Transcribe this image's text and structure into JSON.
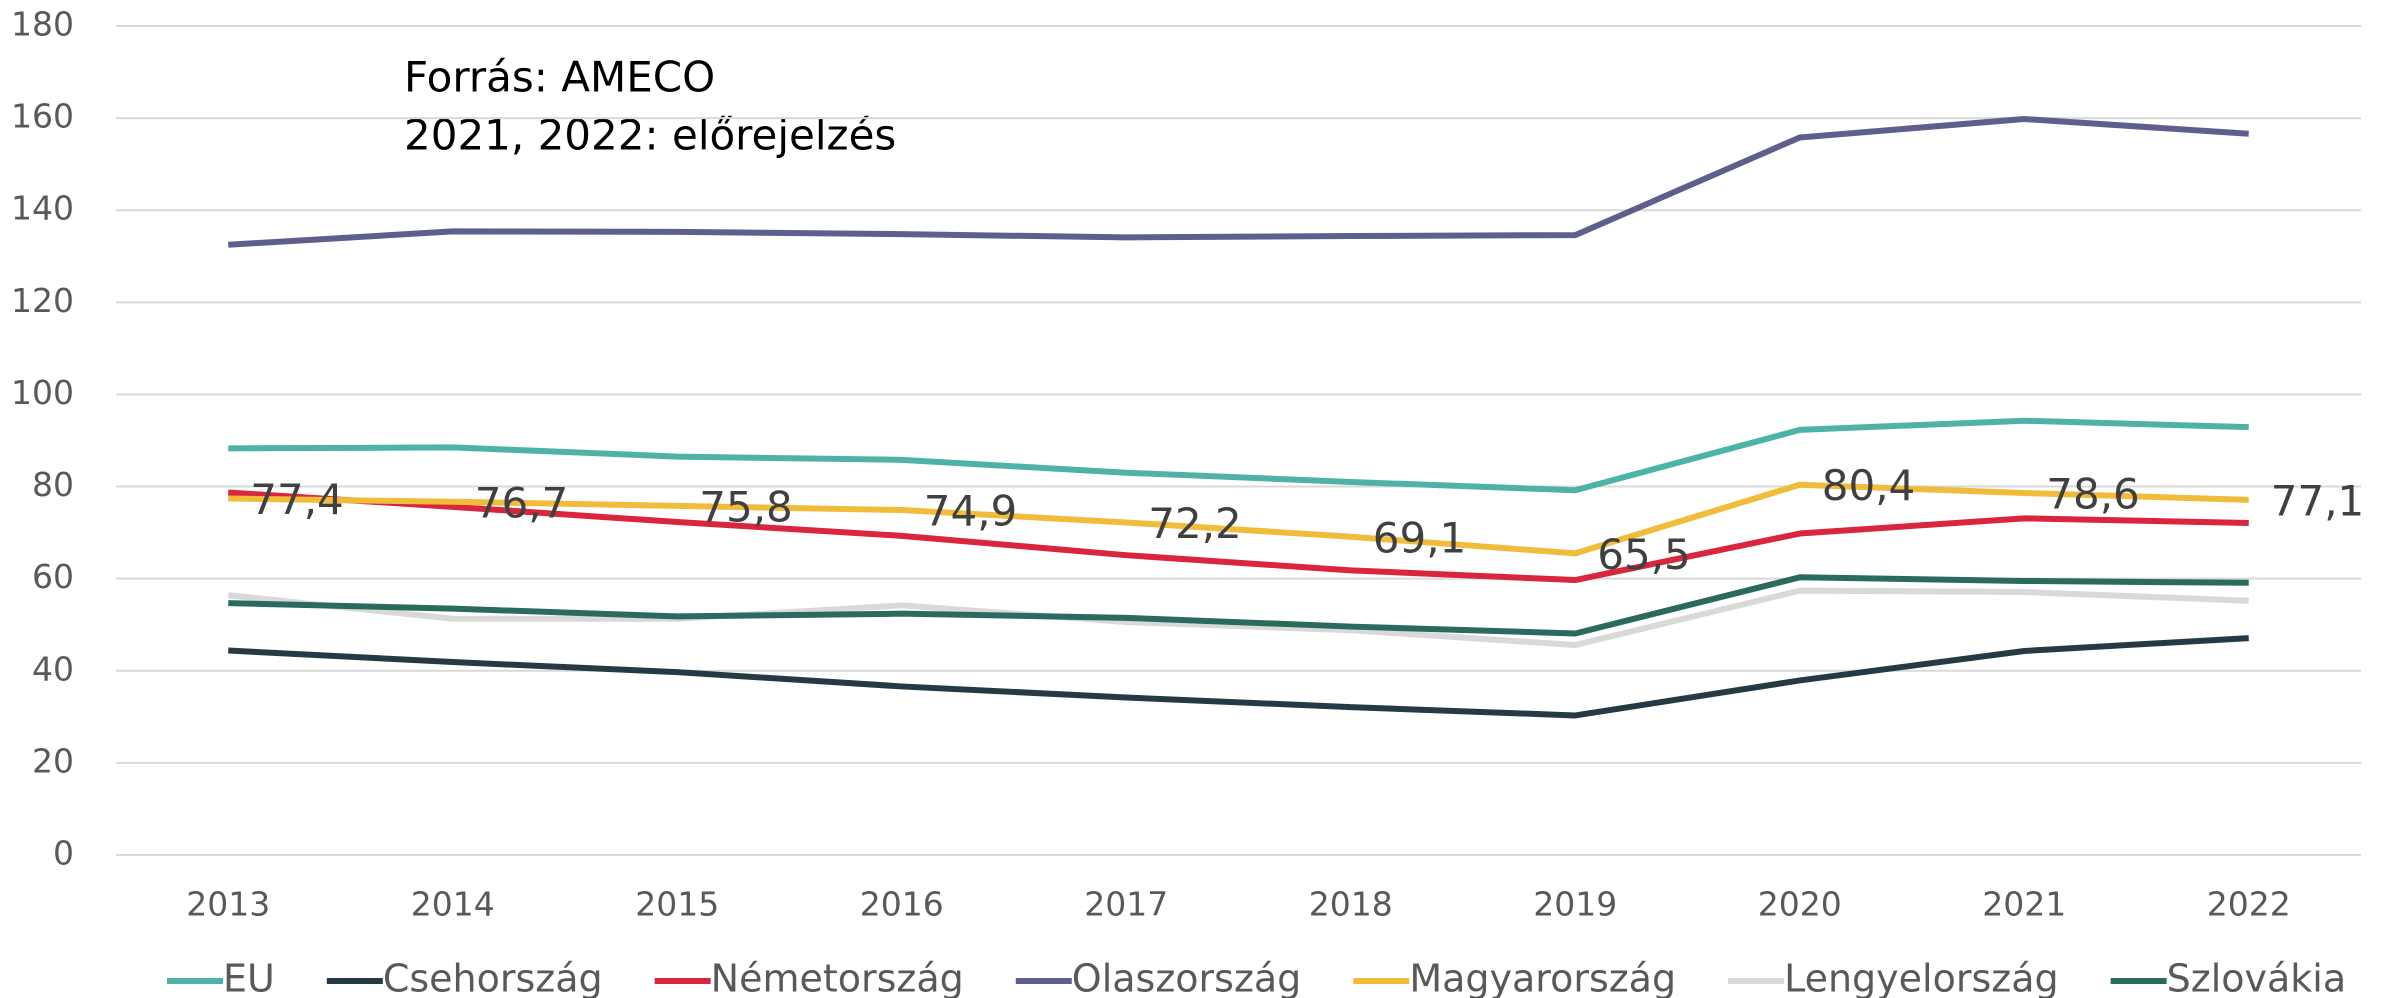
{
  "chart_data": {
    "type": "line",
    "annotations": [
      "Forrás: AMECO",
      "2021, 2022: előrejelzés"
    ],
    "categories": [
      "2013",
      "2014",
      "2015",
      "2016",
      "2017",
      "2018",
      "2019",
      "2020",
      "2021",
      "2022"
    ],
    "series": [
      {
        "name": "EU",
        "color": "#4db3a6",
        "values": [
          88.3,
          88.5,
          86.5,
          85.8,
          83.0,
          81.0,
          79.2,
          92.3,
          94.3,
          92.9
        ]
      },
      {
        "name": "Csehország",
        "color": "#263a45",
        "values": [
          44.4,
          41.9,
          39.7,
          36.6,
          34.2,
          32.1,
          30.3,
          37.9,
          44.3,
          47.1
        ]
      },
      {
        "name": "Németország",
        "color": "#d7263d",
        "values": [
          78.7,
          75.6,
          72.3,
          69.3,
          65.1,
          61.8,
          59.7,
          69.8,
          73.1,
          72.1
        ]
      },
      {
        "name": "Olaszország",
        "color": "#5f5f8d",
        "values": [
          132.5,
          135.4,
          135.3,
          134.8,
          134.1,
          134.4,
          134.6,
          155.8,
          159.8,
          156.6
        ]
      },
      {
        "name": "Magyarország",
        "color": "#f0bc3a",
        "values": [
          77.4,
          76.7,
          75.8,
          74.9,
          72.2,
          69.1,
          65.5,
          80.4,
          78.6,
          77.1
        ],
        "value_labels": [
          "77,4",
          "76,7",
          "75,8",
          "74,9",
          "72,2",
          "69,1",
          "65,5",
          "80,4",
          "78,6",
          "77,1"
        ]
      },
      {
        "name": "Lengyelország",
        "color": "#d9d9d9",
        "values": [
          56.4,
          51.3,
          51.3,
          54.2,
          50.6,
          48.8,
          45.6,
          57.4,
          57.1,
          55.2
        ]
      },
      {
        "name": "Szlovákia",
        "color": "#2a6b5e",
        "values": [
          54.7,
          53.5,
          51.8,
          52.4,
          51.5,
          49.6,
          48.1,
          60.3,
          59.5,
          59.1
        ]
      }
    ],
    "ylim": [
      0,
      180
    ],
    "yticks": [
      0,
      20,
      40,
      60,
      80,
      100,
      120,
      140,
      160,
      180
    ],
    "grid": true,
    "legend": "bottom"
  }
}
